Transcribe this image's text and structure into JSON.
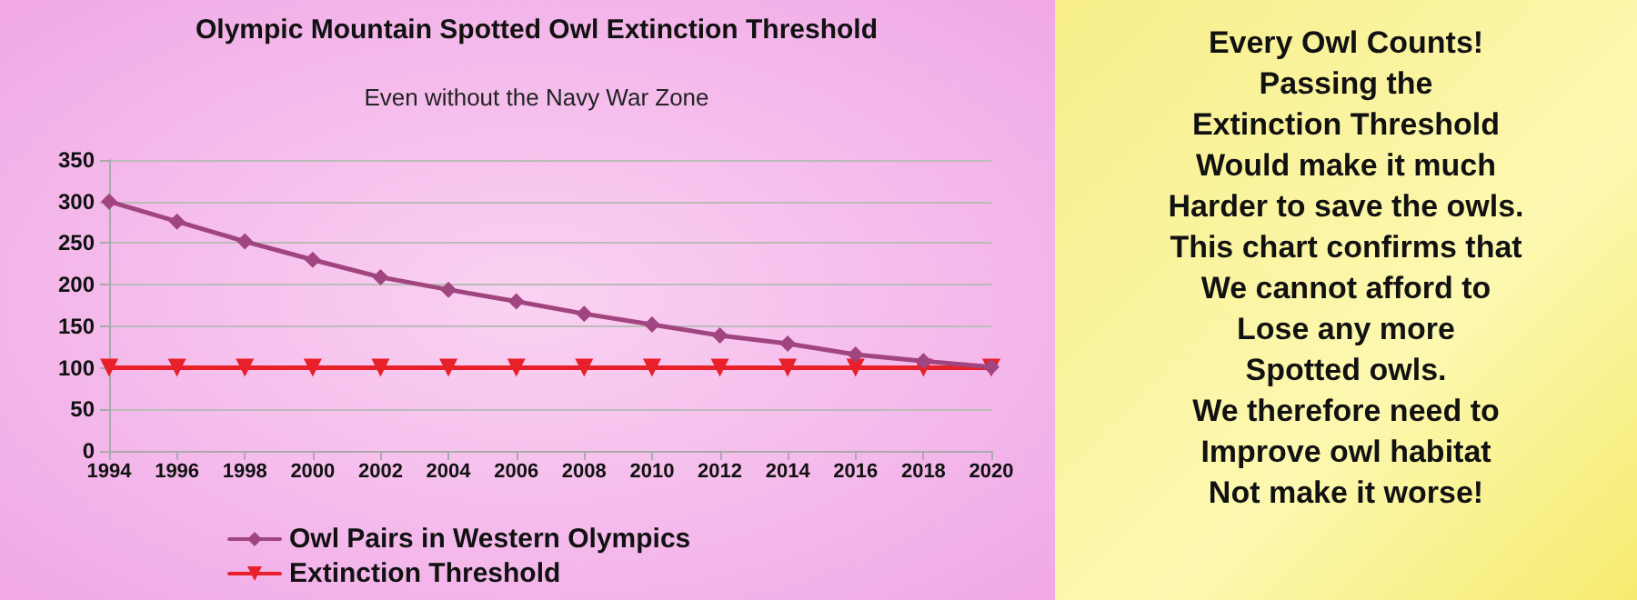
{
  "chart_data": {
    "type": "line",
    "title": "Olympic Mountain Spotted Owl Extinction Threshold",
    "subtitle": "Even without the Navy War Zone",
    "categories": [
      "1994",
      "1996",
      "1998",
      "2000",
      "2002",
      "2004",
      "2006",
      "2008",
      "2010",
      "2012",
      "2014",
      "2016",
      "2018",
      "2020"
    ],
    "series": [
      {
        "name": "Owl Pairs in Western Olympics",
        "color": "#a0457f",
        "marker": "diamond",
        "values": [
          300,
          276,
          252,
          230,
          209,
          194,
          180,
          165,
          152,
          139,
          129,
          116,
          108,
          101
        ]
      },
      {
        "name": "Extinction Threshold",
        "color": "#e8202a",
        "marker": "triangle",
        "values": [
          100,
          100,
          100,
          100,
          100,
          100,
          100,
          100,
          100,
          100,
          100,
          100,
          100,
          100
        ]
      }
    ],
    "ylim": [
      0,
      350
    ],
    "yticks": [
      0,
      50,
      100,
      150,
      200,
      250,
      300,
      350
    ],
    "grid": "y",
    "legend": "bottom",
    "line_style": "solid",
    "annotations": [
      "Every Owl Counts!\nPassing the\nExtinction Threshold\nWould make it much\nHarder to save the owls.\nThis chart confirms that\nWe cannot afford to\nLose any more\nSpotted owls.\nWe therefore need to\nImprove owl habitat\nNot make it worse!"
    ]
  }
}
